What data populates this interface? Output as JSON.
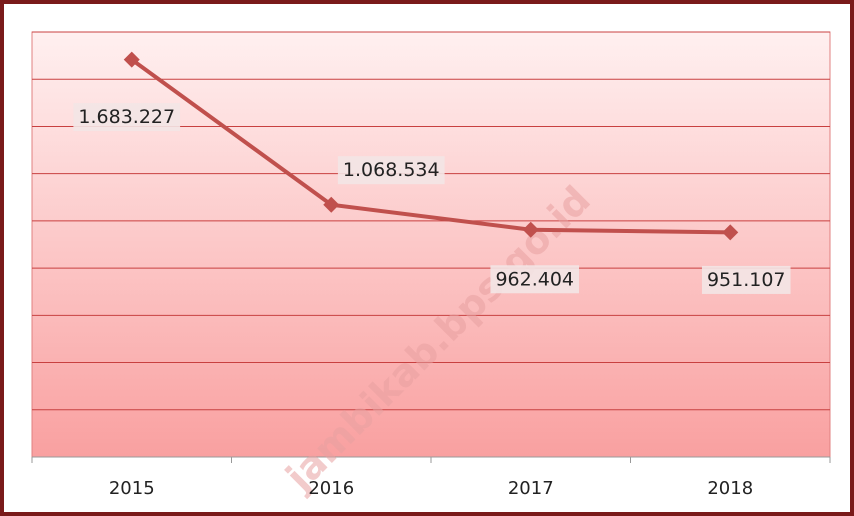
{
  "chart_data": {
    "type": "line",
    "categories": [
      "2015",
      "2016",
      "2017",
      "2018"
    ],
    "series": [
      {
        "color": "#c0504d",
        "values": [
          1683227,
          1068534,
          962404,
          951107
        ],
        "value_labels": [
          "1.683.227",
          "1.068.534",
          "962.404",
          "951.107"
        ]
      }
    ],
    "ylim": [
      0,
      1800000
    ],
    "yticks": [
      0,
      200000,
      400000,
      600000,
      800000,
      1000000,
      1200000,
      1400000,
      1600000,
      1800000
    ],
    "grid": true,
    "watermark": "jambikab.bps.go.id"
  }
}
